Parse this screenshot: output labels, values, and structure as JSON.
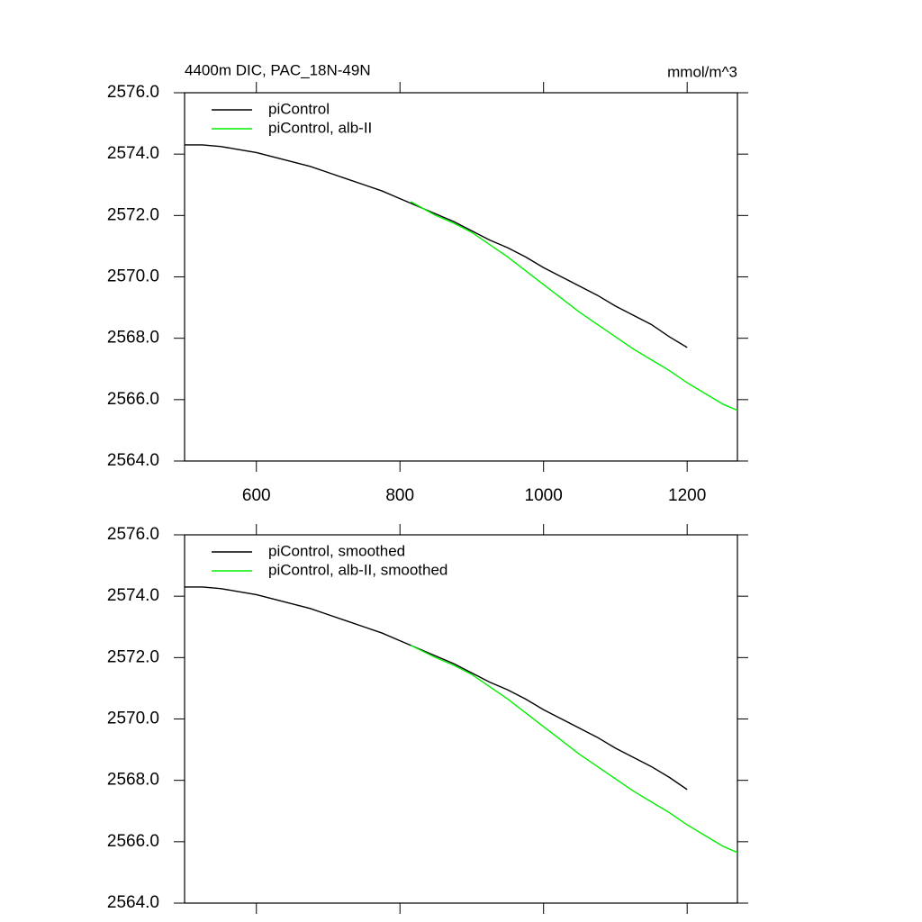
{
  "chart_data": [
    {
      "type": "line",
      "title": "4400m DIC, PAC_18N-49N",
      "subtitle": "mmol/m^3",
      "xlim": [
        500,
        1270
      ],
      "xticks": [
        600,
        800,
        1000,
        1200
      ],
      "xtick_labels": true,
      "ylim": [
        2564,
        2576
      ],
      "yticks": [
        {
          "value": 2564,
          "label": "2564.0"
        },
        {
          "value": 2566,
          "label": "2566.0"
        },
        {
          "value": 2568,
          "label": "2568.0"
        },
        {
          "value": 2570,
          "label": "2570.0"
        },
        {
          "value": 2572,
          "label": "2572.0"
        },
        {
          "value": 2574,
          "label": "2574.0"
        },
        {
          "value": 2576,
          "label": "2576.0"
        }
      ],
      "legend": "upper left",
      "series": [
        {
          "name": "piControl",
          "color": "#000000",
          "x": [
            500,
            525,
            550,
            575,
            600,
            625,
            650,
            675,
            700,
            725,
            750,
            775,
            800,
            825,
            850,
            875,
            900,
            925,
            950,
            975,
            1000,
            1025,
            1050,
            1075,
            1100,
            1125,
            1150,
            1175,
            1200
          ],
          "values": [
            2574.3,
            2574.3,
            2574.25,
            2574.15,
            2574.05,
            2573.9,
            2573.75,
            2573.6,
            2573.4,
            2573.2,
            2573.0,
            2572.8,
            2572.55,
            2572.3,
            2572.05,
            2571.8,
            2571.5,
            2571.2,
            2570.95,
            2570.65,
            2570.3,
            2570.0,
            2569.7,
            2569.4,
            2569.05,
            2568.75,
            2568.45,
            2568.05,
            2567.7
          ]
        },
        {
          "name": "piControl, alb-II",
          "color": "#00ee00",
          "x": [
            815,
            850,
            875,
            900,
            925,
            950,
            975,
            1000,
            1025,
            1050,
            1075,
            1100,
            1125,
            1150,
            1175,
            1200,
            1225,
            1250,
            1270
          ],
          "values": [
            2572.45,
            2572.0,
            2571.75,
            2571.45,
            2571.05,
            2570.65,
            2570.2,
            2569.75,
            2569.3,
            2568.85,
            2568.45,
            2568.05,
            2567.65,
            2567.3,
            2566.95,
            2566.55,
            2566.2,
            2565.85,
            2565.65
          ]
        }
      ]
    },
    {
      "type": "line",
      "xlim": [
        500,
        1270
      ],
      "xticks": [
        600,
        800,
        1000,
        1200
      ],
      "xtick_labels": false,
      "ylim": [
        2564,
        2576
      ],
      "yticks": [
        {
          "value": 2564,
          "label": "2564.0"
        },
        {
          "value": 2566,
          "label": "2566.0"
        },
        {
          "value": 2568,
          "label": "2568.0"
        },
        {
          "value": 2570,
          "label": "2570.0"
        },
        {
          "value": 2572,
          "label": "2572.0"
        },
        {
          "value": 2574,
          "label": "2574.0"
        },
        {
          "value": 2576,
          "label": "2576.0"
        }
      ],
      "legend": "upper left",
      "series": [
        {
          "name": "piControl, smoothed",
          "color": "#000000",
          "x": [
            500,
            525,
            550,
            575,
            600,
            625,
            650,
            675,
            700,
            725,
            750,
            775,
            800,
            825,
            850,
            875,
            900,
            925,
            950,
            975,
            1000,
            1025,
            1050,
            1075,
            1100,
            1125,
            1150,
            1175,
            1200
          ],
          "values": [
            2574.3,
            2574.3,
            2574.25,
            2574.15,
            2574.05,
            2573.9,
            2573.75,
            2573.6,
            2573.4,
            2573.2,
            2573.0,
            2572.8,
            2572.55,
            2572.3,
            2572.05,
            2571.8,
            2571.5,
            2571.2,
            2570.95,
            2570.65,
            2570.3,
            2570.0,
            2569.7,
            2569.4,
            2569.05,
            2568.75,
            2568.45,
            2568.1,
            2567.7
          ]
        },
        {
          "name": "piControl, alb-II, smoothed",
          "color": "#00ee00",
          "x": [
            815,
            850,
            875,
            900,
            925,
            950,
            975,
            1000,
            1025,
            1050,
            1075,
            1100,
            1125,
            1150,
            1175,
            1200,
            1225,
            1250,
            1270
          ],
          "values": [
            2572.4,
            2572.0,
            2571.75,
            2571.45,
            2571.05,
            2570.65,
            2570.2,
            2569.75,
            2569.3,
            2568.85,
            2568.45,
            2568.05,
            2567.65,
            2567.3,
            2566.95,
            2566.55,
            2566.2,
            2565.85,
            2565.65
          ]
        }
      ]
    }
  ]
}
